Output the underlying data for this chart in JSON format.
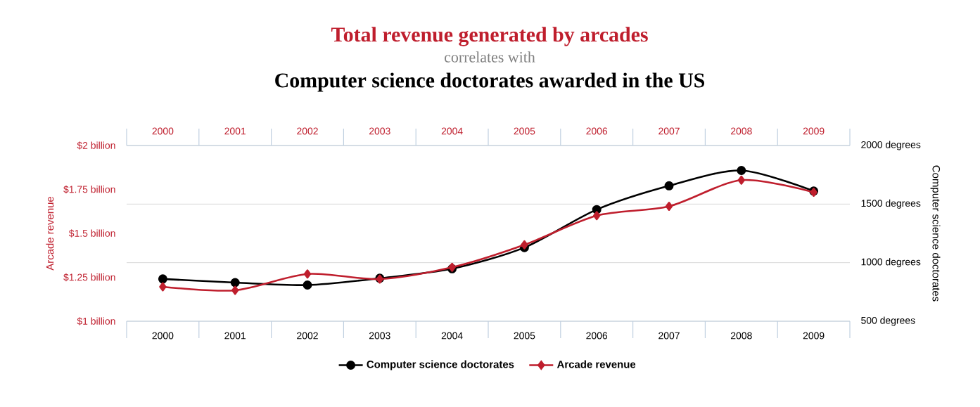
{
  "chart_data": {
    "type": "line",
    "title": "Total revenue generated by arcades",
    "subtitle": "correlates with",
    "annotations": [
      "Computer science doctorates awarded in the US"
    ],
    "categories": [
      "2000",
      "2001",
      "2002",
      "2003",
      "2004",
      "2005",
      "2006",
      "2007",
      "2008",
      "2009"
    ],
    "ylabel": "Arcade revenue",
    "y2label": "Computer science doctorates",
    "ylim": [
      1,
      2
    ],
    "yticks": [
      {
        "value": 1,
        "label": "$1 billion"
      },
      {
        "value": 1.25,
        "label": "$1.25 billion"
      },
      {
        "value": 1.5,
        "label": "$1.5 billion"
      },
      {
        "value": 1.75,
        "label": "$1.75 billion"
      },
      {
        "value": 2,
        "label": "$2 billion"
      }
    ],
    "y2lim": [
      500,
      2000
    ],
    "y2ticks": [
      {
        "value": 500,
        "label": "500 degrees"
      },
      {
        "value": 1000,
        "label": "1000 degrees"
      },
      {
        "value": 1500,
        "label": "1500 degrees"
      },
      {
        "value": 2000,
        "label": "2000 degrees"
      }
    ],
    "grid": "y",
    "legend": "bottom",
    "series": [
      {
        "name": "Computer science doctorates",
        "color": "#000000",
        "axis": "y2",
        "marker": "circle",
        "values": [
          861,
          830,
          809,
          867,
          948,
          1129,
          1453,
          1656,
          1787,
          1611
        ]
      },
      {
        "name": "Arcade revenue",
        "color": "#bf1e2d",
        "axis": "y",
        "marker": "diamond",
        "values": [
          1.196,
          1.176,
          1.269,
          1.24,
          1.307,
          1.435,
          1.601,
          1.654,
          1.803,
          1.734
        ]
      }
    ]
  }
}
